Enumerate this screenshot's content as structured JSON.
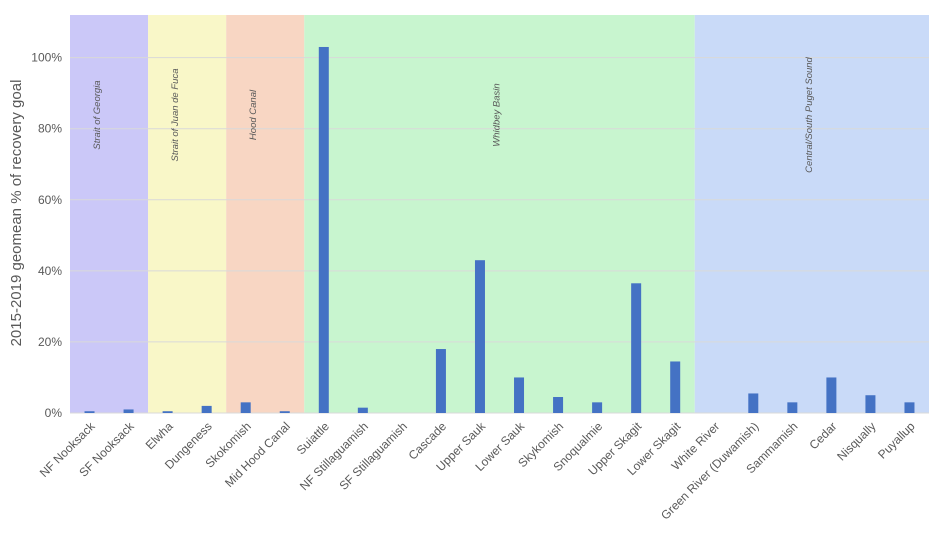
{
  "chart_data": {
    "type": "bar",
    "title": "",
    "xlabel": "",
    "ylabel": "2015-2019 geomean % of recovery goal",
    "ylim": [
      0,
      112
    ],
    "yticks": [
      0,
      20,
      40,
      60,
      80,
      100
    ],
    "ytick_labels": [
      "0%",
      "20%",
      "40%",
      "60%",
      "80%",
      "100%"
    ],
    "grid": true,
    "bar_color": "#4472c4",
    "categories": [
      "NF Nooksack",
      "SF Nooksack",
      "Elwha",
      "Dungeness",
      "Skokomish",
      "Mid Hood Canal",
      "Suiattle",
      "NF Stillaguamish",
      "SF Stillaguamish",
      "Cascade",
      "Upper Sauk",
      "Lower Sauk",
      "Skykomish",
      "Snoqualmie",
      "Upper Skagit",
      "Lower Skagit",
      "White River",
      "Green River (Duwamish)",
      "Sammamish",
      "Cedar",
      "Nisqually",
      "Puyallup"
    ],
    "values": [
      0.5,
      1,
      0.5,
      2,
      3,
      0.5,
      103,
      1.5,
      0,
      18,
      43,
      10,
      4.5,
      3,
      36.5,
      14.5,
      0,
      5.5,
      3,
      10,
      5,
      3
    ],
    "regions": [
      {
        "label": "Strait of Georgia",
        "color": "#cbc8f8",
        "start": 0,
        "end": 1
      },
      {
        "label": "Strait of Juan de Fuca",
        "color": "#f9f7c8",
        "start": 2,
        "end": 3
      },
      {
        "label": "Hood Canal",
        "color": "#f8d6c3",
        "start": 4,
        "end": 5
      },
      {
        "label": "Whidbey Basin",
        "color": "#c8f5cf",
        "start": 6,
        "end": 15
      },
      {
        "label": "Central/South Puget Sound",
        "color": "#c9daf8",
        "start": 16,
        "end": 21
      }
    ]
  }
}
